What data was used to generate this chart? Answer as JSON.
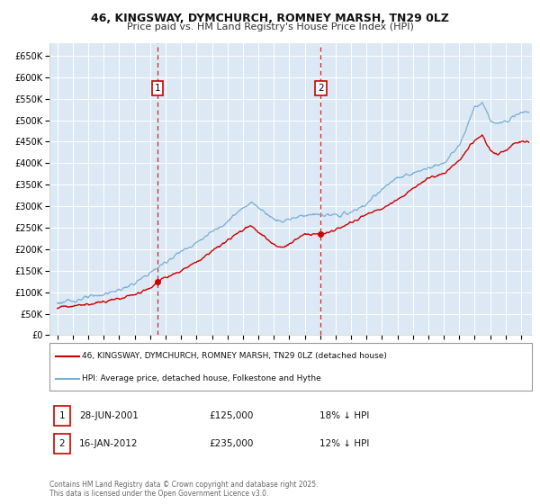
{
  "title_line1": "46, KINGSWAY, DYMCHURCH, ROMNEY MARSH, TN29 0LZ",
  "title_line2": "Price paid vs. HM Land Registry's House Price Index (HPI)",
  "background_color": "#ffffff",
  "plot_bg_color": "#dce9f5",
  "grid_color": "#ffffff",
  "red_line_color": "#cc0000",
  "blue_line_color": "#7aafd4",
  "marker1_date_x": 2001.49,
  "marker1_price": 125000,
  "marker2_date_x": 2012.04,
  "marker2_price": 235000,
  "legend_label_red": "46, KINGSWAY, DYMCHURCH, ROMNEY MARSH, TN29 0LZ (detached house)",
  "legend_label_blue": "HPI: Average price, detached house, Folkestone and Hythe",
  "footer": "Contains HM Land Registry data © Crown copyright and database right 2025.\nThis data is licensed under the Open Government Licence v3.0.",
  "ylim_min": 0,
  "ylim_max": 680000,
  "yticks": [
    0,
    50000,
    100000,
    150000,
    200000,
    250000,
    300000,
    350000,
    400000,
    450000,
    500000,
    550000,
    600000,
    650000
  ],
  "xlim_min": 1994.5,
  "xlim_max": 2025.7,
  "xtick_start": 1995,
  "xtick_end": 2025
}
